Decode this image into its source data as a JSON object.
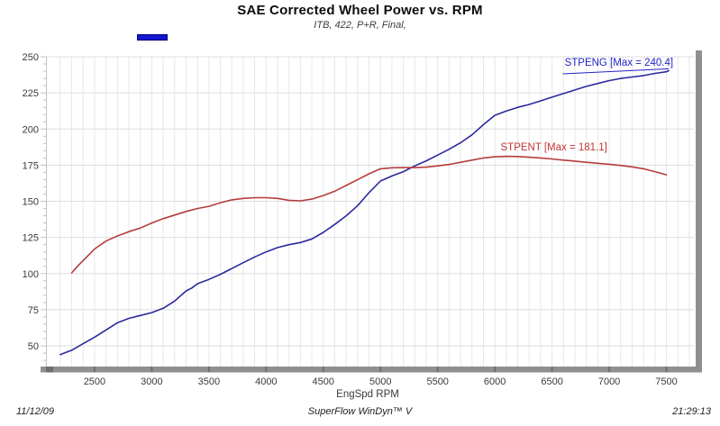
{
  "header": {
    "title": "SAE Corrected Wheel Power vs. RPM",
    "subtitle": "ITB, 422, P+R, Final,"
  },
  "legend": {
    "swatch_series": "STPENG",
    "swatch_color": "#1317cf"
  },
  "footer": {
    "date": "11/12/09",
    "app": "SuperFlow WinDyn™ V",
    "time": "21:29:13"
  },
  "chart_data": {
    "type": "line",
    "title": "SAE Corrected Wheel Power vs. RPM",
    "subtitle": "ITB, 422, P+R, Final,",
    "xlabel": "EngSpd  RPM",
    "ylabel": "",
    "xlim": [
      2075,
      7740
    ],
    "ylim": [
      35.7,
      250
    ],
    "xticks": [
      2500,
      3000,
      3500,
      4000,
      4500,
      5000,
      5500,
      6000,
      6500,
      7000,
      7500
    ],
    "yticks": [
      50,
      75,
      100,
      125,
      150,
      175,
      200,
      225,
      250
    ],
    "grid": true,
    "minor_x_grid_step": 100,
    "minor_y_tick_step": 5,
    "colors": {
      "grid_vertical": "#e7e7e7",
      "grid_horizontal": "#dedede",
      "axis_ticks": "#c2c2c2",
      "axis_bar": "#8f8f8f",
      "axis_bar_notch": "#6e6e6e",
      "tick_label": "#3a3a3a"
    },
    "series": [
      {
        "name": "STPENG",
        "max": 240.4,
        "color": "#2a2a9e",
        "points": [
          [
            2200,
            44
          ],
          [
            2250,
            45.5
          ],
          [
            2300,
            47
          ],
          [
            2400,
            51.5
          ],
          [
            2500,
            56
          ],
          [
            2600,
            61
          ],
          [
            2700,
            66
          ],
          [
            2800,
            69
          ],
          [
            2900,
            71
          ],
          [
            3000,
            73
          ],
          [
            3100,
            76
          ],
          [
            3200,
            81
          ],
          [
            3300,
            88
          ],
          [
            3350,
            90
          ],
          [
            3400,
            93
          ],
          [
            3500,
            96
          ],
          [
            3600,
            99.5
          ],
          [
            3700,
            103.5
          ],
          [
            3800,
            107.5
          ],
          [
            3900,
            111.5
          ],
          [
            4000,
            115
          ],
          [
            4100,
            118
          ],
          [
            4200,
            120
          ],
          [
            4300,
            121.5
          ],
          [
            4400,
            124
          ],
          [
            4500,
            128.5
          ],
          [
            4600,
            134
          ],
          [
            4700,
            140
          ],
          [
            4800,
            147
          ],
          [
            4900,
            156
          ],
          [
            5000,
            164
          ],
          [
            5100,
            167.5
          ],
          [
            5200,
            170.5
          ],
          [
            5300,
            174.5
          ],
          [
            5400,
            178
          ],
          [
            5500,
            182
          ],
          [
            5600,
            186
          ],
          [
            5700,
            190.5
          ],
          [
            5800,
            196
          ],
          [
            5900,
            203
          ],
          [
            6000,
            209.5
          ],
          [
            6100,
            212.5
          ],
          [
            6200,
            215
          ],
          [
            6300,
            217
          ],
          [
            6400,
            219.5
          ],
          [
            6500,
            222
          ],
          [
            6600,
            224.5
          ],
          [
            6700,
            227
          ],
          [
            6800,
            229.5
          ],
          [
            6900,
            231.5
          ],
          [
            7000,
            233.5
          ],
          [
            7100,
            235
          ],
          [
            7200,
            236
          ],
          [
            7300,
            237
          ],
          [
            7400,
            238.5
          ],
          [
            7500,
            239.6
          ],
          [
            7520,
            240.4
          ]
        ]
      },
      {
        "name": "STPENT",
        "max": 181.1,
        "color": "#b53c3c",
        "points": [
          [
            2300,
            100.5
          ],
          [
            2350,
            105
          ],
          [
            2400,
            109
          ],
          [
            2450,
            113
          ],
          [
            2500,
            117
          ],
          [
            2600,
            122.5
          ],
          [
            2700,
            126
          ],
          [
            2800,
            129
          ],
          [
            2900,
            131.5
          ],
          [
            3000,
            135
          ],
          [
            3100,
            138
          ],
          [
            3200,
            140.5
          ],
          [
            3300,
            143
          ],
          [
            3400,
            145
          ],
          [
            3500,
            146.5
          ],
          [
            3600,
            149
          ],
          [
            3700,
            151
          ],
          [
            3800,
            152
          ],
          [
            3900,
            152.5
          ],
          [
            4000,
            152.5
          ],
          [
            4100,
            152
          ],
          [
            4200,
            150.7
          ],
          [
            4300,
            150.3
          ],
          [
            4400,
            151.5
          ],
          [
            4500,
            154
          ],
          [
            4600,
            157
          ],
          [
            4700,
            161
          ],
          [
            4800,
            165
          ],
          [
            4900,
            169
          ],
          [
            5000,
            172.5
          ],
          [
            5100,
            173.2
          ],
          [
            5200,
            173.3
          ],
          [
            5300,
            173.3
          ],
          [
            5400,
            173.6
          ],
          [
            5500,
            174.5
          ],
          [
            5600,
            175.5
          ],
          [
            5700,
            177
          ],
          [
            5800,
            178.5
          ],
          [
            5900,
            180
          ],
          [
            6000,
            180.8
          ],
          [
            6100,
            181.1
          ],
          [
            6200,
            181
          ],
          [
            6300,
            180.5
          ],
          [
            6400,
            180
          ],
          [
            6500,
            179.3
          ],
          [
            6600,
            178.5
          ],
          [
            6700,
            177.8
          ],
          [
            6800,
            177
          ],
          [
            6900,
            176.3
          ],
          [
            7000,
            175.6
          ],
          [
            7100,
            174.8
          ],
          [
            7200,
            173.8
          ],
          [
            7300,
            172.5
          ],
          [
            7400,
            170.5
          ],
          [
            7500,
            168.3
          ]
        ]
      }
    ],
    "annotations": [
      {
        "text": "STPENG [Max = 240.4]",
        "color": "#2323c4",
        "rpm": 6610,
        "value": 243.8,
        "pointer_to_rpm": 7520,
        "pointer_to_value": 240.4
      },
      {
        "text": "STPENT [Max = 181.1]",
        "color": "#c33434",
        "rpm": 6050,
        "value": 185.2
      }
    ],
    "legend_position": "top-left"
  }
}
